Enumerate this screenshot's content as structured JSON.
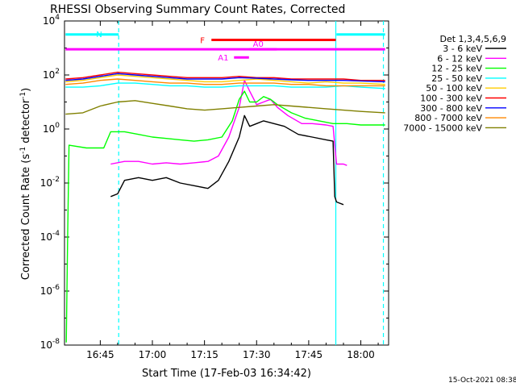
{
  "chart_data": {
    "type": "line",
    "title": "RHESSI Observing Summary Count Rates, Corrected",
    "xlabel": "Start Time (17-Feb-03 16:34:42)",
    "ylabel_main": "Corrected Count Rate (s",
    "ylabel_sup1": "-1",
    "ylabel_mid": " detector",
    "ylabel_sup2": "-1",
    "ylabel_end": ")",
    "yscale": "log",
    "ylim_exp": [
      -8,
      4
    ],
    "xlim_min": [
      34.7,
      103.0
    ],
    "x_ticks": [
      {
        "min": 45,
        "label": "16:45"
      },
      {
        "min": 60,
        "label": "17:00"
      },
      {
        "min": 75,
        "label": "17:15"
      },
      {
        "min": 90,
        "label": "17:30"
      },
      {
        "min": 105,
        "label": "17:45"
      },
      {
        "min": 120,
        "label": "18:00"
      }
    ],
    "y_ticks": [
      {
        "base": "10",
        "exp": "4"
      },
      {
        "base": "10",
        "exp": "2"
      },
      {
        "base": "10",
        "exp": "0"
      },
      {
        "base": "10",
        "exp": "-2"
      },
      {
        "base": "10",
        "exp": "-4"
      },
      {
        "base": "10",
        "exp": "-6"
      },
      {
        "base": "10",
        "exp": "-8"
      }
    ],
    "legend_title": "Det 1,3,4,5,6,9",
    "series": [
      {
        "name": "3 - 6 keV",
        "color": "#000000",
        "points": [
          [
            48,
            -2.5
          ],
          [
            50,
            -2.4
          ],
          [
            52,
            -1.9
          ],
          [
            56,
            -1.8
          ],
          [
            60,
            -1.9
          ],
          [
            64,
            -1.8
          ],
          [
            68,
            -2.0
          ],
          [
            72,
            -2.1
          ],
          [
            76,
            -2.2
          ],
          [
            79,
            -1.9
          ],
          [
            82,
            -1.2
          ],
          [
            85,
            -0.3
          ],
          [
            86.5,
            0.5
          ],
          [
            88,
            0.1
          ],
          [
            90,
            0.2
          ],
          [
            92,
            0.3
          ],
          [
            95,
            0.2
          ],
          [
            98,
            0.1
          ],
          [
            102,
            -0.2
          ],
          [
            106,
            -0.3
          ],
          [
            110,
            -0.4
          ],
          [
            112,
            -0.45
          ],
          [
            112.5,
            -2.5
          ],
          [
            113,
            -2.7
          ],
          [
            115,
            -2.8
          ]
        ]
      },
      {
        "name": "6 - 12 keV",
        "color": "#ff00ff",
        "points": [
          [
            48,
            -1.3
          ],
          [
            52,
            -1.2
          ],
          [
            56,
            -1.2
          ],
          [
            60,
            -1.3
          ],
          [
            64,
            -1.25
          ],
          [
            68,
            -1.3
          ],
          [
            72,
            -1.25
          ],
          [
            76,
            -1.2
          ],
          [
            79,
            -1.0
          ],
          [
            82,
            -0.3
          ],
          [
            85,
            0.8
          ],
          [
            86.5,
            1.8
          ],
          [
            88,
            1.4
          ],
          [
            90,
            0.9
          ],
          [
            92,
            1.0
          ],
          [
            94,
            1.1
          ],
          [
            96,
            0.8
          ],
          [
            99,
            0.5
          ],
          [
            103,
            0.2
          ],
          [
            106,
            0.2
          ],
          [
            110,
            0.15
          ],
          [
            112,
            0.1
          ],
          [
            113,
            -1.3
          ],
          [
            115,
            -1.3
          ],
          [
            116,
            -1.35
          ]
        ]
      },
      {
        "name": "12 - 25 keV",
        "color": "#00ff00",
        "points": [
          [
            35.2,
            -7.9
          ],
          [
            35.6,
            -4.0
          ],
          [
            36,
            -0.6
          ],
          [
            41,
            -0.7
          ],
          [
            44,
            -0.7
          ],
          [
            46,
            -0.7
          ],
          [
            48,
            -0.1
          ],
          [
            52,
            -0.1
          ],
          [
            56,
            -0.2
          ],
          [
            60,
            -0.3
          ],
          [
            64,
            -0.35
          ],
          [
            68,
            -0.4
          ],
          [
            72,
            -0.45
          ],
          [
            76,
            -0.4
          ],
          [
            80,
            -0.3
          ],
          [
            83,
            0.3
          ],
          [
            85,
            1.1
          ],
          [
            86.5,
            1.4
          ],
          [
            88,
            1.0
          ],
          [
            90,
            1.0
          ],
          [
            92,
            1.2
          ],
          [
            94,
            1.1
          ],
          [
            96,
            0.9
          ],
          [
            100,
            0.6
          ],
          [
            104,
            0.4
          ],
          [
            108,
            0.3
          ],
          [
            112,
            0.2
          ],
          [
            116,
            0.2
          ],
          [
            120,
            0.15
          ],
          [
            124,
            0.15
          ],
          [
            127,
            0.15
          ]
        ]
      },
      {
        "name": "25 - 50 keV",
        "color": "#00ffff",
        "points": [
          [
            35,
            1.55
          ],
          [
            40,
            1.55
          ],
          [
            45,
            1.6
          ],
          [
            50,
            1.7
          ],
          [
            55,
            1.7
          ],
          [
            60,
            1.65
          ],
          [
            65,
            1.6
          ],
          [
            70,
            1.6
          ],
          [
            75,
            1.55
          ],
          [
            80,
            1.55
          ],
          [
            85,
            1.6
          ],
          [
            90,
            1.6
          ],
          [
            95,
            1.6
          ],
          [
            100,
            1.55
          ],
          [
            105,
            1.55
          ],
          [
            110,
            1.55
          ],
          [
            115,
            1.6
          ],
          [
            120,
            1.55
          ],
          [
            127,
            1.5
          ]
        ]
      },
      {
        "name": "50 - 100 keV",
        "color": "#ffcc00",
        "points": [
          [
            35,
            1.75
          ],
          [
            40,
            1.8
          ],
          [
            45,
            1.9
          ],
          [
            50,
            2.0
          ],
          [
            55,
            1.95
          ],
          [
            60,
            1.9
          ],
          [
            65,
            1.85
          ],
          [
            70,
            1.8
          ],
          [
            75,
            1.75
          ],
          [
            80,
            1.75
          ],
          [
            85,
            1.8
          ],
          [
            90,
            1.85
          ],
          [
            95,
            1.8
          ],
          [
            100,
            1.75
          ],
          [
            105,
            1.7
          ],
          [
            110,
            1.75
          ],
          [
            115,
            1.7
          ],
          [
            120,
            1.7
          ],
          [
            127,
            1.65
          ]
        ]
      },
      {
        "name": "100 - 300 keV",
        "color": "#ff0000",
        "points": [
          [
            35,
            1.85
          ],
          [
            40,
            1.9
          ],
          [
            45,
            2.0
          ],
          [
            50,
            2.1
          ],
          [
            55,
            2.05
          ],
          [
            60,
            2.0
          ],
          [
            65,
            1.95
          ],
          [
            70,
            1.9
          ],
          [
            75,
            1.9
          ],
          [
            80,
            1.9
          ],
          [
            85,
            1.95
          ],
          [
            90,
            1.9
          ],
          [
            95,
            1.9
          ],
          [
            100,
            1.85
          ],
          [
            105,
            1.85
          ],
          [
            110,
            1.85
          ],
          [
            115,
            1.85
          ],
          [
            120,
            1.8
          ],
          [
            127,
            1.8
          ]
        ]
      },
      {
        "name": "300 - 800 keV",
        "color": "#0000ff",
        "points": [
          [
            35,
            1.8
          ],
          [
            40,
            1.85
          ],
          [
            45,
            1.95
          ],
          [
            50,
            2.05
          ],
          [
            55,
            2.0
          ],
          [
            60,
            1.95
          ],
          [
            65,
            1.9
          ],
          [
            70,
            1.85
          ],
          [
            75,
            1.85
          ],
          [
            80,
            1.85
          ],
          [
            85,
            1.9
          ],
          [
            90,
            1.88
          ],
          [
            95,
            1.85
          ],
          [
            100,
            1.82
          ],
          [
            105,
            1.8
          ],
          [
            110,
            1.8
          ],
          [
            115,
            1.8
          ],
          [
            120,
            1.78
          ],
          [
            127,
            1.75
          ]
        ]
      },
      {
        "name": "800 - 7000 keV",
        "color": "#ff8800",
        "points": [
          [
            35,
            1.65
          ],
          [
            40,
            1.7
          ],
          [
            45,
            1.8
          ],
          [
            50,
            1.85
          ],
          [
            55,
            1.8
          ],
          [
            60,
            1.75
          ],
          [
            65,
            1.7
          ],
          [
            70,
            1.7
          ],
          [
            75,
            1.65
          ],
          [
            80,
            1.65
          ],
          [
            85,
            1.7
          ],
          [
            90,
            1.7
          ],
          [
            95,
            1.7
          ],
          [
            100,
            1.65
          ],
          [
            105,
            1.65
          ],
          [
            110,
            1.6
          ],
          [
            115,
            1.6
          ],
          [
            120,
            1.6
          ],
          [
            127,
            1.6
          ]
        ]
      },
      {
        "name": "7000 - 15000 keV",
        "color": "#808000",
        "points": [
          [
            35,
            0.55
          ],
          [
            40,
            0.6
          ],
          [
            45,
            0.85
          ],
          [
            50,
            1.0
          ],
          [
            55,
            1.05
          ],
          [
            60,
            0.95
          ],
          [
            65,
            0.85
          ],
          [
            70,
            0.75
          ],
          [
            75,
            0.7
          ],
          [
            80,
            0.75
          ],
          [
            85,
            0.8
          ],
          [
            90,
            0.85
          ],
          [
            95,
            0.9
          ],
          [
            100,
            0.85
          ],
          [
            105,
            0.8
          ],
          [
            110,
            0.75
          ],
          [
            115,
            0.7
          ],
          [
            120,
            0.65
          ],
          [
            127,
            0.6
          ]
        ]
      }
    ],
    "night_bars": [
      {
        "label": "N",
        "from_min": 35,
        "to_min": 50.3,
        "color": "#00ffff",
        "level_exp": 3.5
      },
      {
        "label": "",
        "from_min": 113,
        "to_min": 127,
        "color": "#00ffff",
        "level_exp": 3.5
      }
    ],
    "saa_bar": {
      "from_min": 35,
      "to_min": 127,
      "color": "#ff00ff",
      "level_exp": 2.95
    },
    "flare_bar": {
      "label": "F",
      "from_min": 77,
      "to_min": 112.8,
      "color": "#ff0000",
      "level_exp": 3.3
    },
    "attenuator_bars": [
      {
        "label": "A1",
        "from_min": 83.5,
        "to_min": 87.8,
        "color": "#ff00ff",
        "level_exp": 2.65
      },
      {
        "label": "A0",
        "from_min": 88,
        "to_min": 95.8,
        "color": "#ff00ff",
        "level_exp": 2.95
      }
    ],
    "vlines": [
      {
        "min": 50.3,
        "style": "dashed",
        "color": "#00ffff"
      },
      {
        "min": 112.8,
        "style": "solid",
        "color": "#00ffff"
      },
      {
        "min": 126.5,
        "style": "dashed",
        "color": "#00ffff"
      }
    ],
    "grid": false,
    "legend_position": "right"
  },
  "footer_date": "15-Oct-2021 08:38"
}
